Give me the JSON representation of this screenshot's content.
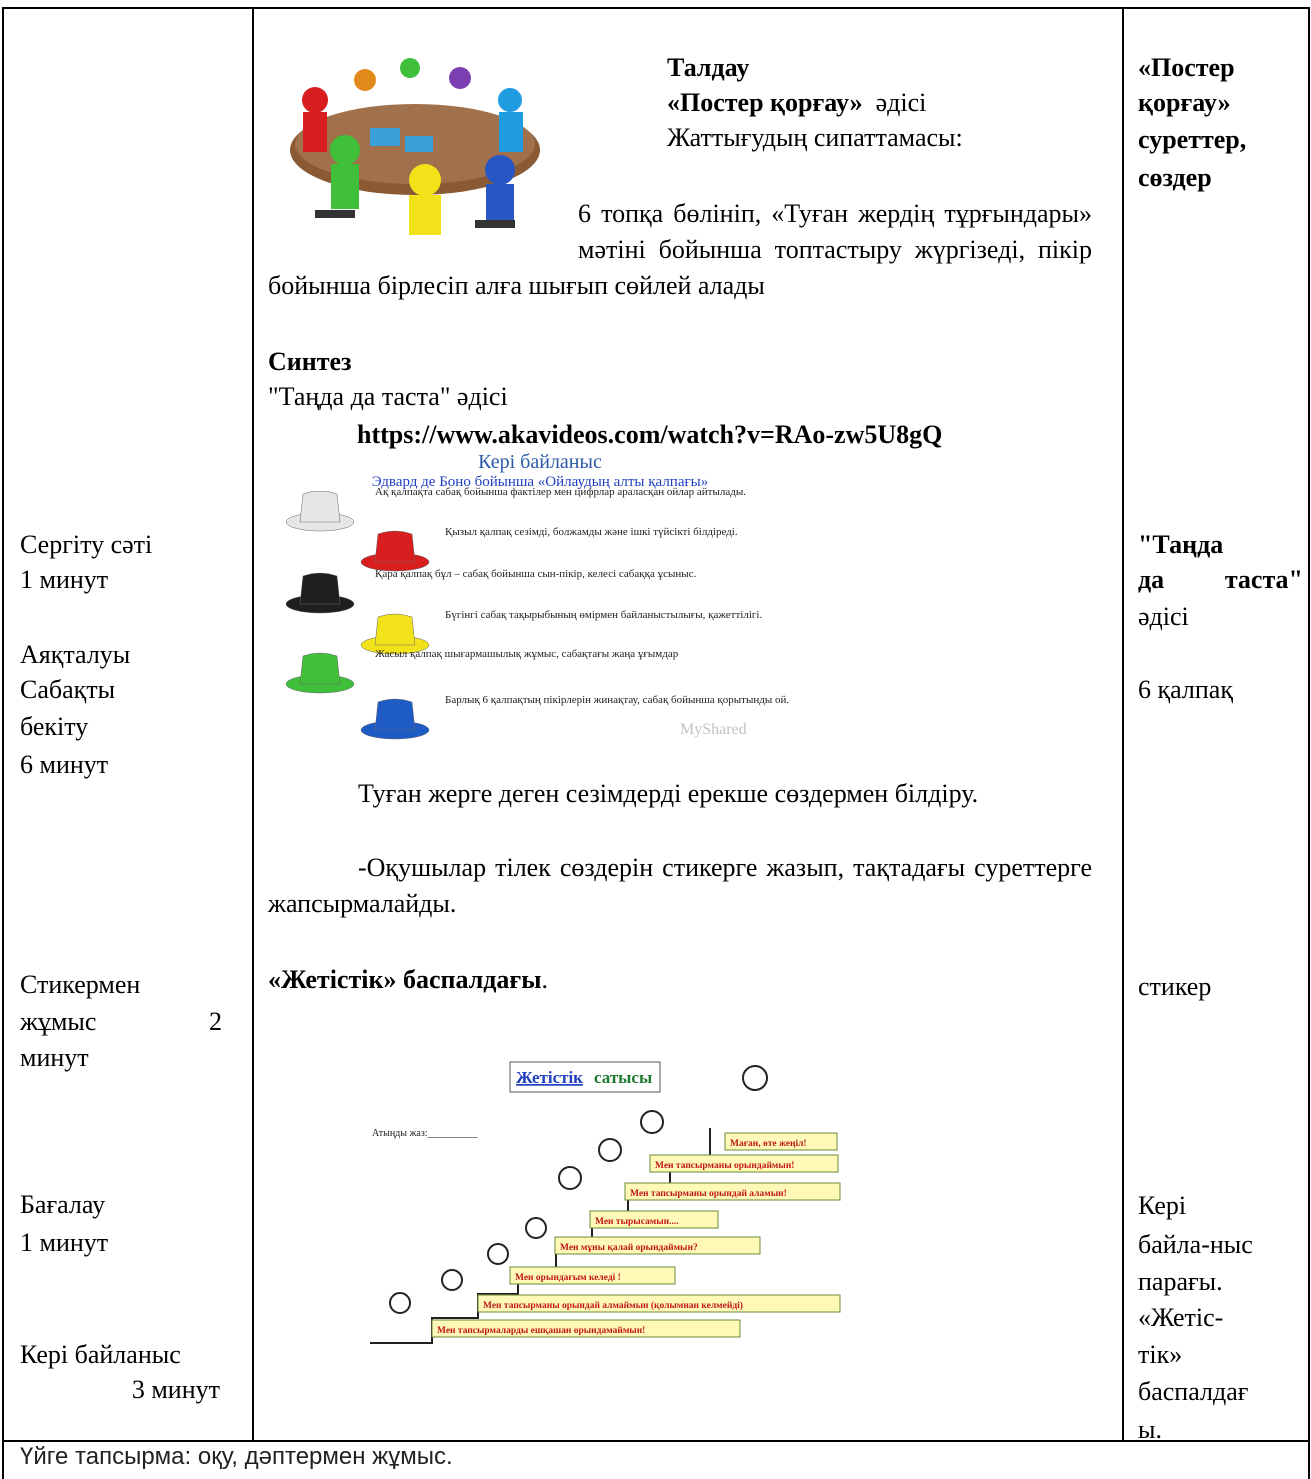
{
  "left_column": {
    "lines": [
      "Сергіту сәті",
      "1 минут",
      "Аяқталуы",
      "Сабақты",
      "бекіту",
      "6 минут",
      "Стикермен",
      "жұмыс 2",
      "минут",
      "Бағалау",
      "1 минут",
      "Кері байланыс",
      "3 минут"
    ]
  },
  "middle_column": {
    "analysis": {
      "heading": "Талдау",
      "method_name": "«Постер қорғау»",
      "method_word": "әдісі",
      "description_label": "Жаттығудың сипаттамасы:",
      "description": "6 топқа бөлініп, «Туған жердің тұрғындары» мәтіні бойынша топтастыру жүргізеді, пікір бойынша бірлесіп алға шығып сөйлей алады"
    },
    "synthesis": {
      "heading": "Синтез",
      "method": "\"Таңда да таста\" әдісі",
      "url": "https://www.akavideos.com/watch?v=RAo-zw5U8gQ"
    },
    "hats_image": {
      "title": "Кері байланыс",
      "subtitle": "Эдвард де Боно бойынша «Ойлаудың алты қалпағы»",
      "watermark": "MyShared",
      "hats": [
        {
          "color": "#e6e6e6",
          "text": "Ақ қалпақта сабақ бойынша фактілер мен цифрлар араласқан ойлар айтылады."
        },
        {
          "color": "#d81e1e",
          "text": "Қызыл қалпақ сезімді, болжамды және ішкі түйсікті білдіреді."
        },
        {
          "color": "#1e1e1e",
          "text": "Қара қалпақ бұл – сабақ бойынша сын-пікір, келесі сабаққа ұсыныс."
        },
        {
          "color": "#f2e21a",
          "text": "Бүгінгі сабақ тақырыбының өмірмен байланыстылығы, қажеттілігі."
        },
        {
          "color": "#3fbf3a",
          "text": "Жасыл қалпақ шығармашылық жұмыс, сабақтағы жаңа ұғымдар"
        },
        {
          "color": "#1f5bc4",
          "text": "Барлық 6 қалпақтың пікірлерін жинақтау, сабақ бойынша қорытынды ой."
        }
      ]
    },
    "feelings": {
      "text": "Туған жерге деген сезімдерді ерекше сөздермен білдіру.",
      "task": "-Оқушылар тілек сөздерін стикерге жазып, тақтадағы суреттерге жапсырмалайды."
    },
    "ladder": {
      "heading": "«Жетістік» баспалдағы",
      "punct": ".",
      "image_title_link": "Жетістік",
      "image_title_rest": "сатысы",
      "name_prompt": "Атыңды жаз:__________",
      "steps": [
        "Маған, өте жеңіл!",
        "Мен тапсырманы орындаймын!",
        "Мен тапсырманы орындай аламын!",
        "Мен тырысамын....",
        "Мен мұны қалай орындаймын?",
        "Мен орындағым келеді !",
        "Мен тапсырманы орындай алмаймын (қолымнан келмейді)",
        "Мен тапсырмаларды ешқашан орындамаймын!"
      ]
    }
  },
  "right_column": {
    "lines": [
      "«Постер",
      "қорғау»",
      "суреттер,",
      "сөздер",
      "\"Таңда",
      "да таста\"",
      "әдісі",
      "6 қалпақ",
      "стикер",
      "Кері",
      "байла-ныс",
      "парағы.",
      "«Жетіс-",
      "тік»",
      "баспалдағ",
      "ы."
    ]
  },
  "footer": "Үйге тапсырма: оқу, дәптермен жұмыс."
}
